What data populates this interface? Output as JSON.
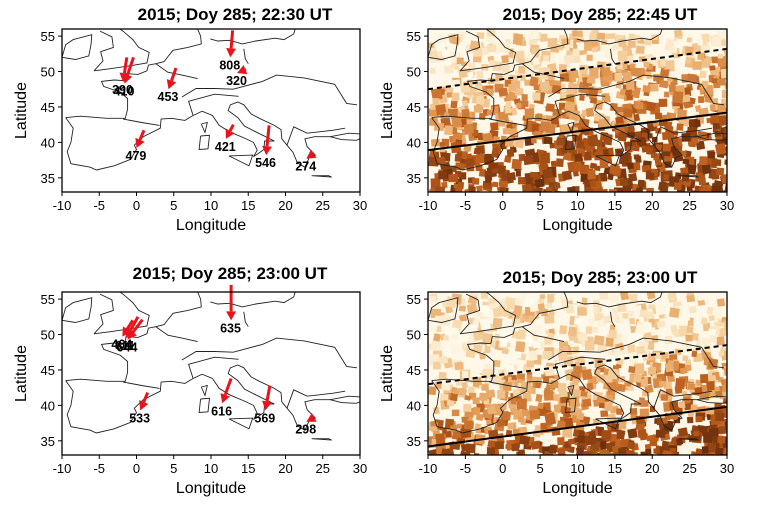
{
  "chart_data": [
    {
      "type": "scatter",
      "title": "2015; Doy 285; 22:30 UT",
      "xlabel": "Longitude",
      "ylabel": "Latitude",
      "xlim": [
        -10,
        30
      ],
      "ylim": [
        33,
        56
      ],
      "xticks": [
        "-10",
        "-5",
        "0",
        "5",
        "10",
        "15",
        "20",
        "25",
        "30"
      ],
      "yticks": [
        "35",
        "40",
        "45",
        "50",
        "55"
      ],
      "grid": false,
      "arrow_color": "#e8141b",
      "series": [
        {
          "values": [
            {
              "lon": -1.8,
              "lat": 48.5,
              "label": "390",
              "dlon": 0.5,
              "dlat": 3.5
            },
            {
              "lon": -1.6,
              "lat": 48.3,
              "label": "410",
              "dlon": 1.2,
              "dlat": 3.7
            },
            {
              "lon": 4.3,
              "lat": 47.5,
              "label": "453",
              "dlon": 1.0,
              "dlat": 3.0
            },
            {
              "lon": 12.6,
              "lat": 52.0,
              "label": "808",
              "dlon": 0.3,
              "dlat": 3.8
            },
            {
              "lon": 13.5,
              "lat": 49.8,
              "label": "320",
              "dlon": 1.2,
              "dlat": 0.5
            },
            {
              "lon": 0.0,
              "lat": 39.2,
              "label": "479",
              "dlon": 1.0,
              "dlat": 2.5
            },
            {
              "lon": 12.0,
              "lat": 40.5,
              "label": "421",
              "dlon": 1.0,
              "dlat": 2.0
            },
            {
              "lon": 17.4,
              "lat": 38.2,
              "label": "546",
              "dlon": 0.4,
              "dlat": 4.2
            },
            {
              "lon": 22.8,
              "lat": 37.7,
              "label": "274",
              "dlon": 0.7,
              "dlat": 0.5
            }
          ]
        }
      ]
    },
    {
      "type": "heatmap",
      "title": "2015; Doy 285; 22:45 UT",
      "xlabel": "Longitude",
      "ylabel": "Latitude",
      "xlim": [
        -10,
        30
      ],
      "ylim": [
        33,
        56
      ],
      "xticks": [
        "-10",
        "-5",
        "0",
        "5",
        "10",
        "15",
        "20",
        "25",
        "30"
      ],
      "yticks": [
        "35",
        "40",
        "45",
        "50",
        "55"
      ],
      "colorscale": [
        "#fffdf0",
        "#f7d7a8",
        "#e39a55",
        "#b85a1a",
        "#6b2e0c"
      ],
      "lines": [
        {
          "style": "solid",
          "lon": [
            -10,
            30
          ],
          "lat": [
            38.9,
            44.2
          ]
        },
        {
          "style": "dashed",
          "lon": [
            -10,
            30
          ],
          "lat": [
            47.5,
            53.2
          ]
        }
      ]
    },
    {
      "type": "scatter",
      "title": "2015; Doy 285; 23:00 UT",
      "xlabel": "Longitude",
      "ylabel": "Latitude",
      "xlim": [
        -10,
        30
      ],
      "ylim": [
        33,
        56
      ],
      "xticks": [
        "-10",
        "-5",
        "0",
        "5",
        "10",
        "15",
        "20",
        "25",
        "30"
      ],
      "yticks": [
        "35",
        "40",
        "45",
        "50",
        "55"
      ],
      "grid": false,
      "arrow_color": "#e8141b",
      "series": [
        {
          "values": [
            {
              "lon": -1.9,
              "lat": 49.7,
              "label": "464",
              "dlon": 1.4,
              "dlat": 2.3
            },
            {
              "lon": -1.4,
              "lat": 49.5,
              "label": "611",
              "dlon": 1.6,
              "dlat": 3.0
            },
            {
              "lon": -1.2,
              "lat": 49.3,
              "label": "644",
              "dlon": 2.0,
              "dlat": 2.8
            },
            {
              "lon": 12.7,
              "lat": 52.0,
              "label": "635",
              "dlon": 0.0,
              "dlat": 5.0
            },
            {
              "lon": 0.5,
              "lat": 39.3,
              "label": "533",
              "dlon": 1.0,
              "dlat": 2.5
            },
            {
              "lon": 11.5,
              "lat": 40.3,
              "label": "616",
              "dlon": 1.2,
              "dlat": 3.5
            },
            {
              "lon": 17.3,
              "lat": 39.3,
              "label": "569",
              "dlon": 0.6,
              "dlat": 3.5
            },
            {
              "lon": 22.8,
              "lat": 37.7,
              "label": "298",
              "dlon": 0.7,
              "dlat": 0.4
            }
          ]
        }
      ]
    },
    {
      "type": "heatmap",
      "title": "2015; Doy 285; 23:00 UT",
      "xlabel": "Longitude",
      "ylabel": "Latitude",
      "xlim": [
        -10,
        30
      ],
      "ylim": [
        33,
        56
      ],
      "xticks": [
        "-10",
        "-5",
        "0",
        "5",
        "10",
        "15",
        "20",
        "25",
        "30"
      ],
      "yticks": [
        "35",
        "40",
        "45",
        "50",
        "55"
      ],
      "colorscale": [
        "#fffdf0",
        "#f7d7a8",
        "#e39a55",
        "#b85a1a",
        "#6b2e0c"
      ],
      "lines": [
        {
          "style": "solid",
          "lon": [
            -10,
            30
          ],
          "lat": [
            34.2,
            39.8
          ]
        },
        {
          "style": "dashed",
          "lon": [
            -10,
            30
          ],
          "lat": [
            43.0,
            48.5
          ]
        }
      ]
    }
  ]
}
